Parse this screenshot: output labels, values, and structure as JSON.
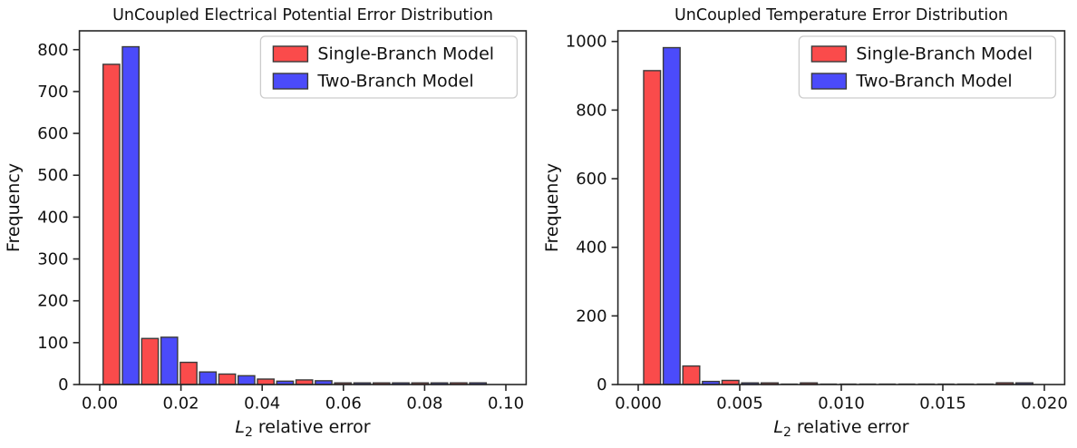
{
  "page": {
    "background": "#ffffff"
  },
  "colors": {
    "single_branch": "#fa4b4b",
    "two_branch": "#4b4bfa",
    "bar_edge": "#3a3a3a",
    "spine": "#262626",
    "text": "#111111",
    "legend_border": "#cccccc",
    "legend_bg": "#ffffff",
    "zero_bar": "#4d4d4d"
  },
  "chart_data": [
    {
      "type": "bar",
      "title": "UnCoupled Electrical Potential Error Distribution",
      "xlabel": {
        "var": "L",
        "sub": "2",
        "rest": " relative error"
      },
      "ylabel": "Frequency",
      "grid": false,
      "legend_position": "upper-right",
      "xlim": [
        -0.005,
        0.105
      ],
      "ylim": [
        0,
        845
      ],
      "xticks": {
        "values": [
          0,
          0.02,
          0.04,
          0.06,
          0.08,
          0.1
        ],
        "labels": [
          "0.00",
          "0.02",
          "0.04",
          "0.06",
          "0.08",
          "0.10"
        ]
      },
      "yticks": {
        "values": [
          0,
          100,
          200,
          300,
          400,
          500,
          600,
          700,
          800
        ],
        "labels": [
          "0",
          "100",
          "200",
          "300",
          "400",
          "500",
          "600",
          "700",
          "800"
        ]
      },
      "bins": {
        "start": 0.0005,
        "width": 0.0095,
        "count": 10
      },
      "series": [
        {
          "name": "Single-Branch Model",
          "color_key": "single_branch",
          "values": [
            765,
            110,
            53,
            25,
            13,
            11,
            2,
            2,
            1,
            4
          ]
        },
        {
          "name": "Two-Branch Model",
          "color_key": "two_branch",
          "values": [
            807,
            113,
            30,
            21,
            8,
            9,
            3,
            1,
            1,
            4
          ]
        }
      ]
    },
    {
      "type": "bar",
      "title": "UnCoupled Temperature Error Distribution",
      "xlabel": {
        "var": "L",
        "sub": "2",
        "rest": " relative error"
      },
      "ylabel": "Frequency",
      "grid": false,
      "legend_position": "upper-right",
      "xlim": [
        -0.001,
        0.021
      ],
      "ylim": [
        0,
        1031
      ],
      "xticks": {
        "values": [
          0,
          0.005,
          0.01,
          0.015,
          0.02
        ],
        "labels": [
          "0.000",
          "0.005",
          "0.010",
          "0.015",
          "0.020"
        ]
      },
      "yticks": {
        "values": [
          0,
          200,
          400,
          600,
          800,
          1000
        ],
        "labels": [
          "0",
          "200",
          "400",
          "600",
          "800",
          "1000"
        ]
      },
      "bins": {
        "start": 0.0002,
        "width": 0.00193,
        "count": 10
      },
      "series": [
        {
          "name": "Single-Branch Model",
          "color_key": "single_branch",
          "values": [
            915,
            54,
            12,
            3,
            3,
            0,
            0,
            0,
            0,
            5
          ]
        },
        {
          "name": "Two-Branch Model",
          "color_key": "two_branch",
          "values": [
            982,
            9,
            1,
            0,
            0,
            0,
            0,
            0,
            0,
            1
          ]
        }
      ]
    }
  ]
}
